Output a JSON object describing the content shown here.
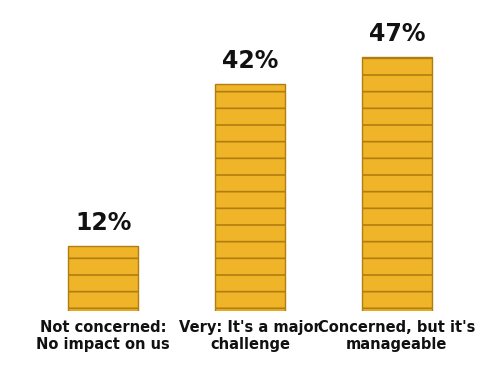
{
  "chart_data": {
    "type": "bar",
    "categories": [
      "Not concerned:\nNo impact on us",
      "Very: It's a major\nchallenge",
      "Concerned, but it's\nmanageable"
    ],
    "values": [
      12,
      42,
      47
    ],
    "value_labels": [
      "12%",
      "42%",
      "47%"
    ],
    "data_labels": true,
    "color": "#f0b429",
    "ylim": [
      0,
      50
    ],
    "tick_labels": "x"
  }
}
